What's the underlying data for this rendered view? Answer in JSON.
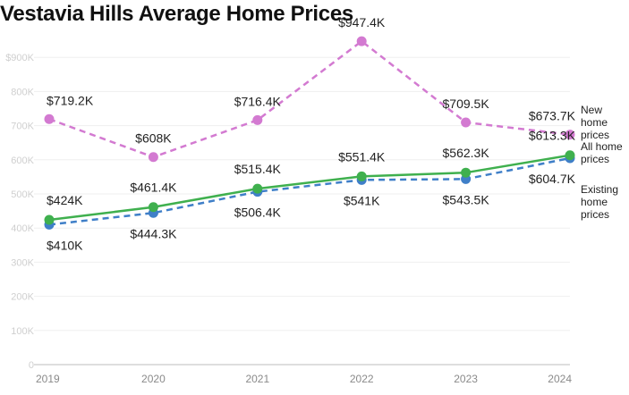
{
  "chart_data": {
    "type": "line",
    "title": "Vestavia Hills Average Home Prices",
    "xlabel": "",
    "ylabel": "",
    "x": [
      "2019",
      "2020",
      "2021",
      "2022",
      "2023",
      "2024"
    ],
    "ylim": [
      0,
      1000000
    ],
    "yticks": [
      {
        "value": 0,
        "label": "0"
      },
      {
        "value": 100000,
        "label": "100K"
      },
      {
        "value": 200000,
        "label": "200K"
      },
      {
        "value": 300000,
        "label": "300K"
      },
      {
        "value": 400000,
        "label": "400K"
      },
      {
        "value": 500000,
        "label": "500K"
      },
      {
        "value": 600000,
        "label": "600K"
      },
      {
        "value": 700000,
        "label": "700K"
      },
      {
        "value": 800000,
        "label": "800K"
      },
      {
        "value": 900000,
        "label": "$900K"
      }
    ],
    "grid": true,
    "legend_placement": "right",
    "series": [
      {
        "name": "New home prices",
        "legend_lines": [
          "New",
          "home",
          "prices"
        ],
        "color": "#d37ad1",
        "dashed": true,
        "values": [
          719200,
          608000,
          716400,
          947400,
          709500,
          673700
        ],
        "labels": [
          "$719.2K",
          "$608K",
          "$716.4K",
          "$947.4K",
          "$709.5K",
          "$673.7K"
        ]
      },
      {
        "name": "All home prices",
        "legend_lines": [
          "All home",
          "prices"
        ],
        "color": "#3fb04e",
        "dashed": false,
        "values": [
          424000,
          461400,
          515400,
          551400,
          562300,
          613300
        ],
        "labels": [
          "$424K",
          "$461.4K",
          "$515.4K",
          "$551.4K",
          "$562.3K",
          "$613.3K"
        ]
      },
      {
        "name": "Existing home prices",
        "legend_lines": [
          "Existing",
          "home",
          "prices"
        ],
        "color": "#3f7fc8",
        "dashed": true,
        "values": [
          410000,
          444300,
          506400,
          541000,
          543500,
          604700
        ],
        "labels": [
          "$410K",
          "$444.3K",
          "$506.4K",
          "$541K",
          "$543.5K",
          "$604.7K"
        ]
      }
    ]
  }
}
